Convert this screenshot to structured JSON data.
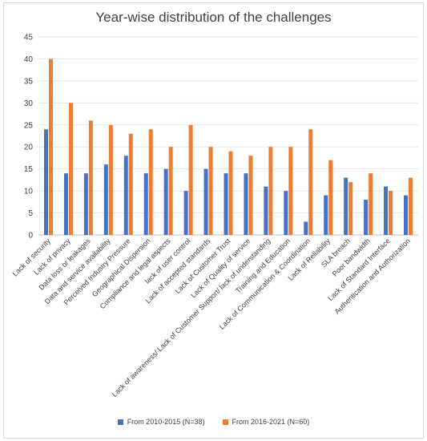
{
  "chart_data": {
    "type": "bar",
    "title": "Year-wise distribution of the challenges",
    "xlabel": "",
    "ylabel": "",
    "ylim": [
      0,
      45
    ],
    "yticks": [
      0,
      5,
      10,
      15,
      20,
      25,
      30,
      35,
      40,
      45
    ],
    "grid": true,
    "legend_position": "bottom",
    "categories": [
      "Lack of security",
      "Lack of privacy",
      "Data loss or leakages",
      "Data and service availability",
      "Perceived Industry Pressure",
      "Geographical Dispersion",
      "Compliance and legal aspects",
      "lack of user control",
      "Lack of accepted standards",
      "Lack of Customer Trust",
      "Lack of Quality of service",
      "Lack of awareness/ Lack of Customer Support/ lack of understanding",
      "Training and Education",
      "Lack of Communication & Coordination",
      "Lack of Reliability",
      "SLA breach",
      "Poor bandwidth",
      "Lack of Standard Interface",
      "Authentication and Authorization"
    ],
    "series": [
      {
        "name": "From 2010-2015 (N=38)",
        "color": "#4472c4",
        "values": [
          24,
          14,
          14,
          16,
          18,
          14,
          15,
          10,
          15,
          14,
          14,
          11,
          10,
          3,
          9,
          13,
          8,
          11,
          9
        ]
      },
      {
        "name": "From 2016-2021 (N=60)",
        "color": "#ed7d31",
        "values": [
          40,
          30,
          26,
          25,
          23,
          24,
          20,
          25,
          20,
          19,
          18,
          20,
          20,
          24,
          17,
          12,
          14,
          10,
          13
        ]
      }
    ]
  }
}
